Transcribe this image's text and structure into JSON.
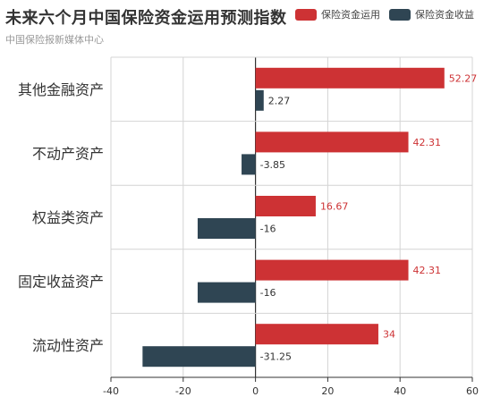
{
  "header": {
    "title": "未来六个月中国保险资金运用预测指数",
    "subtitle": "中国保险报新媒体中心"
  },
  "colors": {
    "series1": "#cd3234",
    "series2": "#2f4553",
    "grid": "#d4d4d4",
    "axis": "#333333"
  },
  "chart_data": {
    "type": "bar",
    "orientation": "horizontal",
    "title": "未来六个月中国保险资金运用预测指数",
    "subtitle": "中国保险报新媒体中心",
    "categories": [
      "其他金融资产",
      "不动产资产",
      "权益类资产",
      "固定收益资产",
      "流动性资产"
    ],
    "series": [
      {
        "name": "保险资金运用",
        "values": [
          52.27,
          42.31,
          16.67,
          42.31,
          34
        ]
      },
      {
        "name": "保险资金收益",
        "values": [
          2.27,
          -3.85,
          -16,
          -16,
          -31.25
        ]
      }
    ],
    "xlim": [
      -40,
      60
    ],
    "xticks": [
      -40,
      -20,
      0,
      20,
      40,
      60
    ],
    "grid": true,
    "legend_position": "top-right",
    "data_labels": true
  }
}
